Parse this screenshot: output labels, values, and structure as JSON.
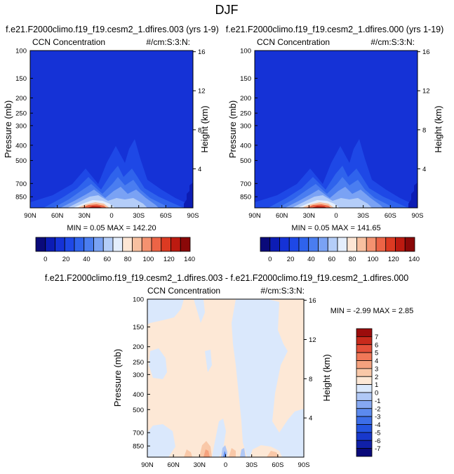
{
  "page": {
    "season": "DJF"
  },
  "panels": [
    {
      "title": "f.e21.F2000climo.f19_f19.cesm2_1.dfires.003 (yrs 1-9)",
      "variable": "CCN Concentration",
      "units": "#/cm:S:3:N:",
      "stats": "MIN =  0.05  MAX = 142.20"
    },
    {
      "title": "f.e21.F2000climo.f19_f19.cesm2_1.dfires.000 (yrs 1-19)",
      "variable": "CCN Concentration",
      "units": "#/cm:S:3:N:",
      "stats": "MIN =  0.05  MAX = 141.65"
    },
    {
      "title": "f.e21.F2000climo.f19_f19.cesm2_1.dfires.003 - f.e21.F2000climo.f19_f19.cesm2_1.dfires.000",
      "variable": "CCN Concentration",
      "units": "#/cm:S:3:N:",
      "stats": "MIN = -2.99  MAX =  2.85"
    }
  ],
  "chart_data": [
    {
      "type": "heatmap",
      "title": "CCN Concentration",
      "xlabel": "",
      "ylabel": "Pressure (mb)",
      "y2label": "Height (km)",
      "x_ticks": [
        "90N",
        "60N",
        "30N",
        "0",
        "30S",
        "60S",
        "90S"
      ],
      "y_ticks": [
        "100",
        "150",
        "200",
        "250",
        "300",
        "400",
        "500",
        "700",
        "850"
      ],
      "y2_ticks": [
        "16",
        "12",
        "8",
        "4"
      ],
      "ylim": [
        1000,
        100
      ],
      "colorbar_ticks": [
        "0",
        "20",
        "40",
        "60",
        "80",
        "100",
        "120",
        "140"
      ],
      "colorbar_range": [
        0,
        150
      ],
      "min": 0.05,
      "max": 142.2
    },
    {
      "type": "heatmap",
      "title": "CCN Concentration",
      "xlabel": "",
      "ylabel": "Pressure (mb)",
      "y2label": "Height (km)",
      "x_ticks": [
        "90N",
        "60N",
        "30N",
        "0",
        "30S",
        "60S",
        "90S"
      ],
      "y_ticks": [
        "100",
        "150",
        "200",
        "250",
        "300",
        "400",
        "500",
        "700",
        "850"
      ],
      "y2_ticks": [
        "16",
        "12",
        "8",
        "4"
      ],
      "ylim": [
        1000,
        100
      ],
      "colorbar_ticks": [
        "0",
        "20",
        "40",
        "60",
        "80",
        "100",
        "120",
        "140"
      ],
      "colorbar_range": [
        0,
        150
      ],
      "min": 0.05,
      "max": 141.65
    },
    {
      "type": "heatmap",
      "title": "CCN Concentration",
      "xlabel": "",
      "ylabel": "Pressure (mb)",
      "y2label": "Height (km)",
      "x_ticks": [
        "90N",
        "60N",
        "30N",
        "0",
        "30S",
        "60S",
        "90S"
      ],
      "y_ticks": [
        "100",
        "150",
        "200",
        "250",
        "300",
        "400",
        "500",
        "700",
        "850"
      ],
      "y2_ticks": [
        "16",
        "12",
        "8",
        "4"
      ],
      "ylim": [
        1000,
        100
      ],
      "colorbar_ticks": [
        "7",
        "6",
        "5",
        "4",
        "3",
        "2",
        "1",
        "0",
        "-1",
        "-2",
        "-3",
        "-4",
        "-5",
        "-6",
        "-7"
      ],
      "colorbar_range": [
        -8,
        8
      ],
      "min": -2.99,
      "max": 2.85
    }
  ],
  "colors": {
    "full_scale": [
      "#0a0a7a",
      "#0c1cb4",
      "#1532d6",
      "#1e48e6",
      "#2f63ec",
      "#4a7df0",
      "#7aa2f4",
      "#b4cdf8",
      "#e4eefc",
      "#fde6d4",
      "#f8c0a0",
      "#f49270",
      "#ec6446",
      "#dc3a22",
      "#bc1a10",
      "#8a0808"
    ],
    "diff_scale": [
      "#0a0a7a",
      "#1020a8",
      "#1838cc",
      "#2454e0",
      "#3c6ee8",
      "#5c8aee",
      "#86a8f2",
      "#b0c8f6",
      "#dae8fc",
      "#fde8d6",
      "#f9c8a8",
      "#f5a27e",
      "#f07858",
      "#e4503a",
      "#c82a1c",
      "#9c0c0c"
    ]
  }
}
